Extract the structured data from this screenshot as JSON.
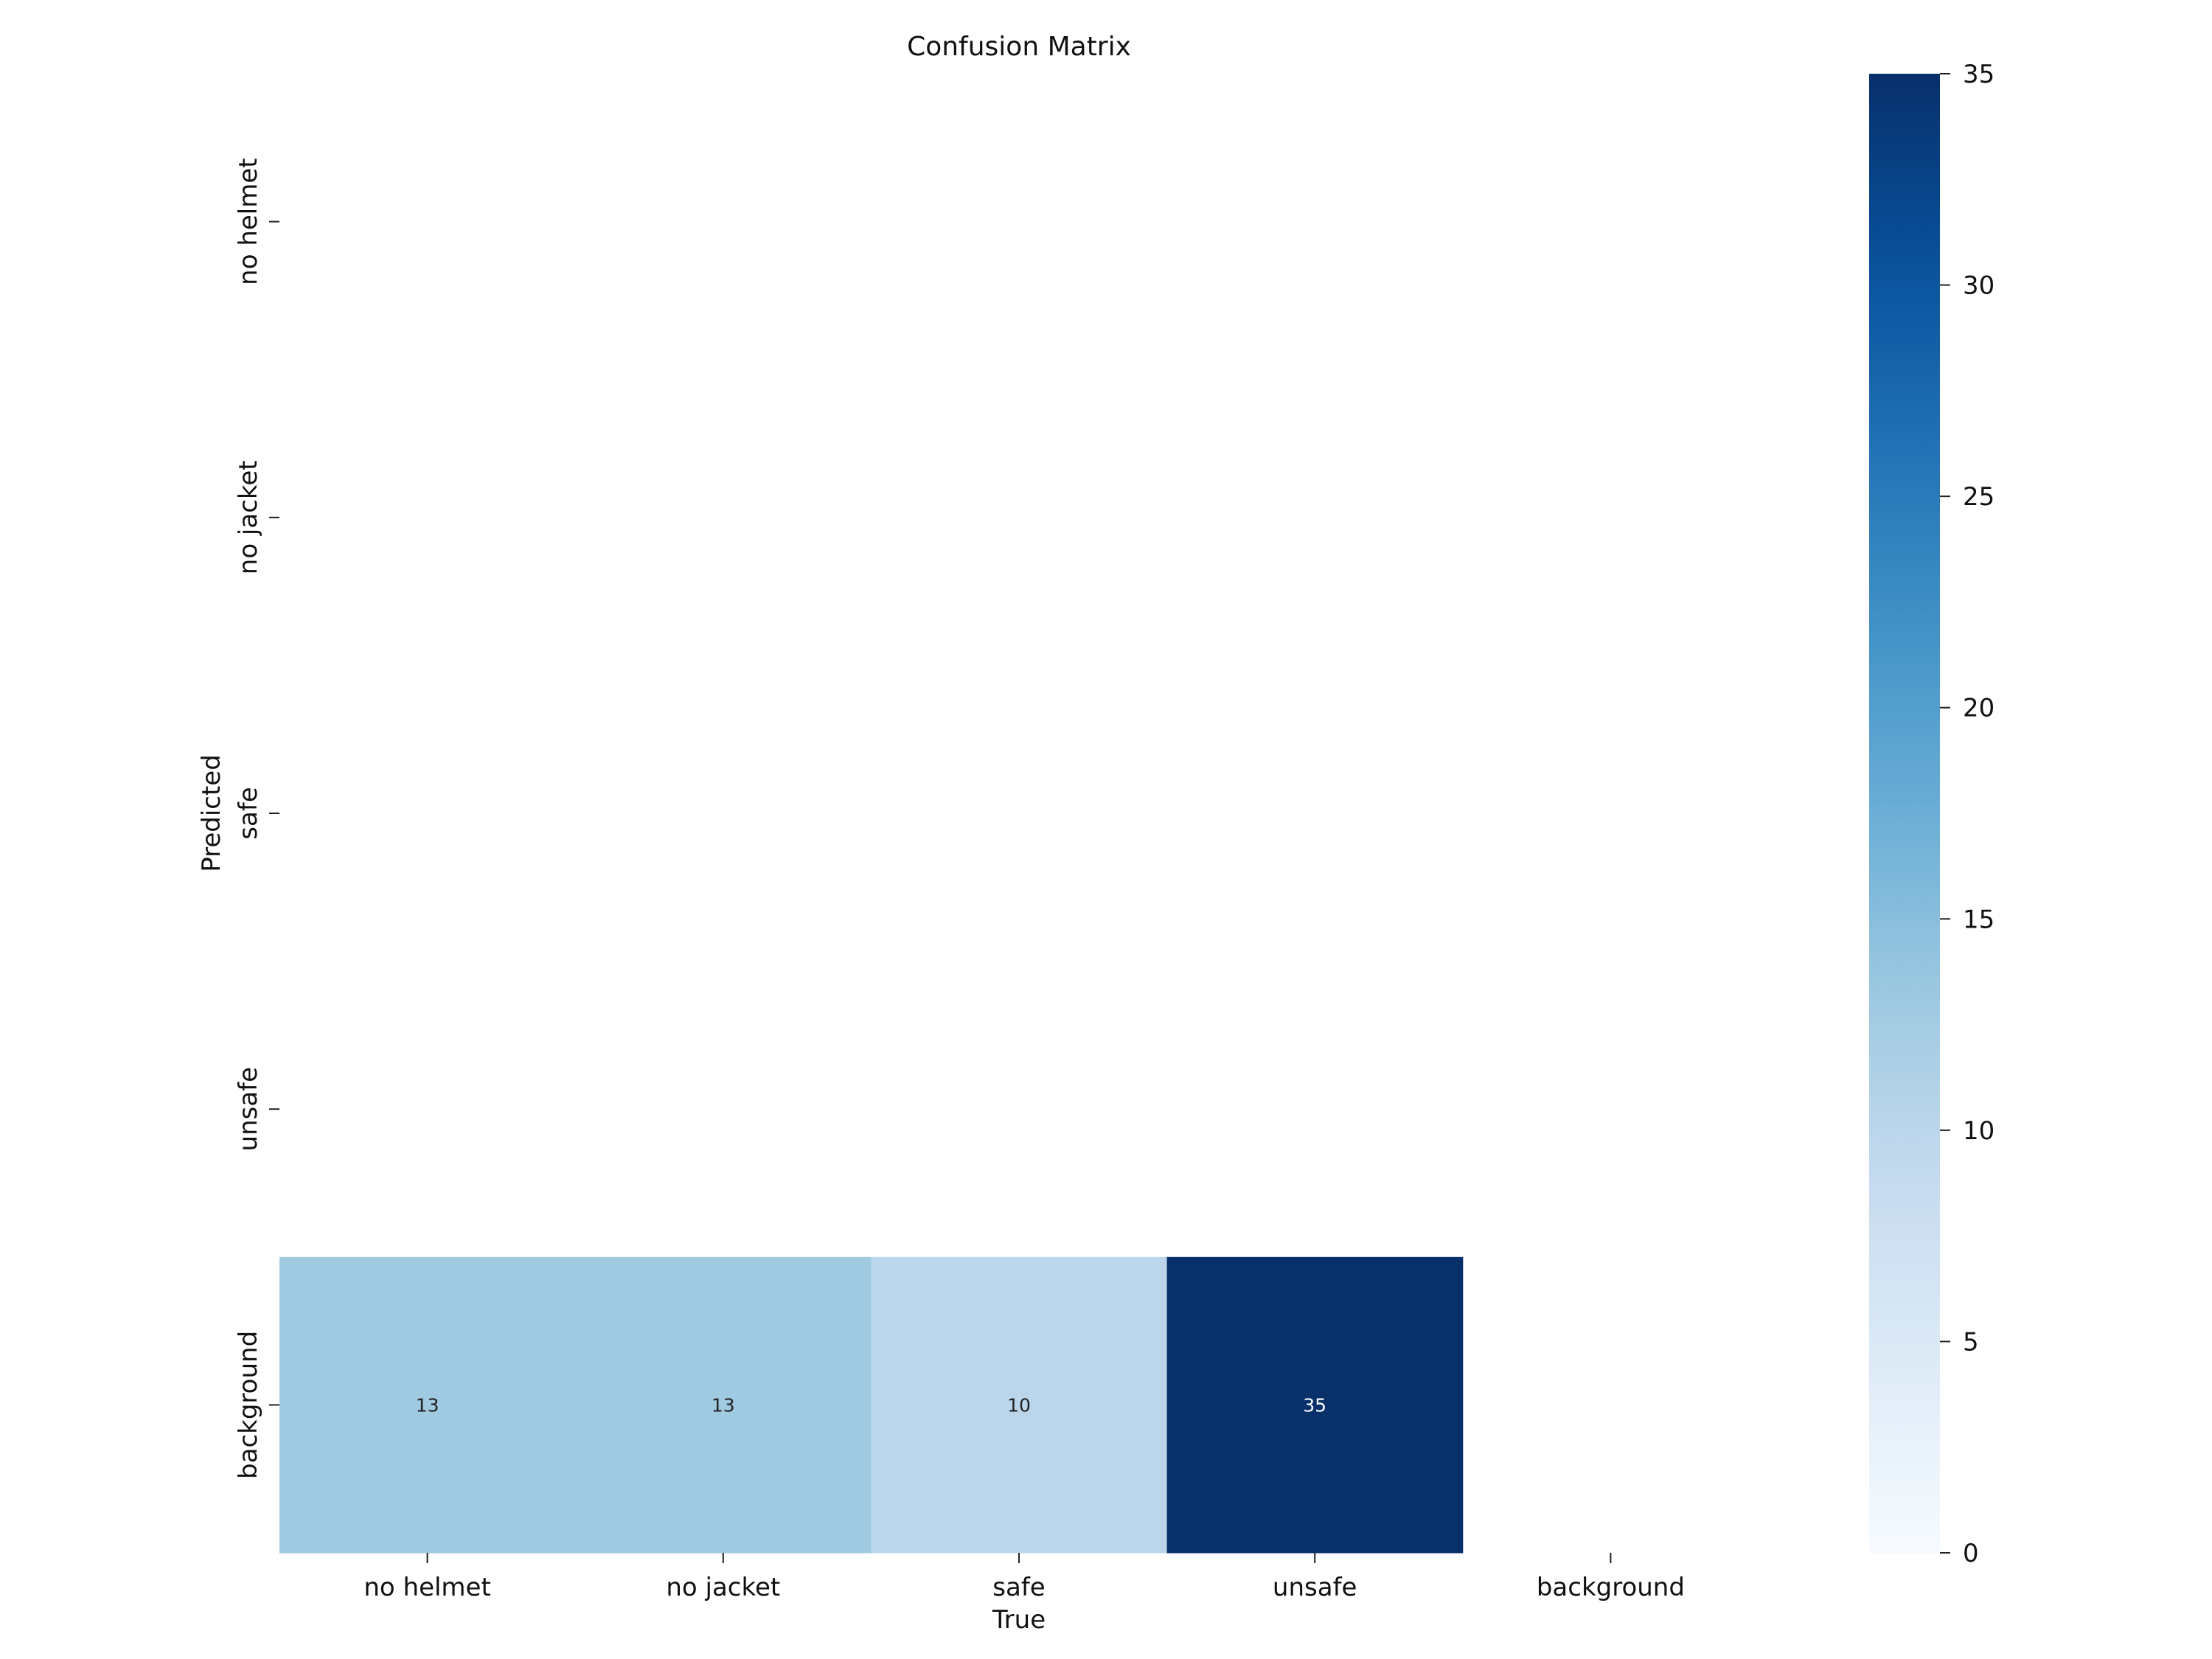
{
  "chart_data": {
    "type": "heatmap",
    "title": "Confusion Matrix",
    "xlabel": "True",
    "ylabel": "Predicted",
    "x_categories": [
      "no helmet",
      "no jacket",
      "safe",
      "unsafe",
      "background"
    ],
    "y_categories": [
      "no helmet",
      "no jacket",
      "safe",
      "unsafe",
      "background"
    ],
    "matrix": [
      [
        null,
        null,
        null,
        null,
        null
      ],
      [
        null,
        null,
        null,
        null,
        null
      ],
      [
        null,
        null,
        null,
        null,
        null
      ],
      [
        null,
        null,
        null,
        null,
        null
      ],
      [
        13,
        13,
        10,
        35,
        null
      ]
    ],
    "colormap": "Blues",
    "colorbar": {
      "range": [
        0,
        35
      ],
      "ticks": [
        0,
        5,
        10,
        15,
        20,
        25,
        30,
        35
      ],
      "tick_labels": [
        "0",
        "5",
        "10",
        "15",
        "20",
        "25",
        "30",
        "35"
      ]
    },
    "grid": false
  }
}
